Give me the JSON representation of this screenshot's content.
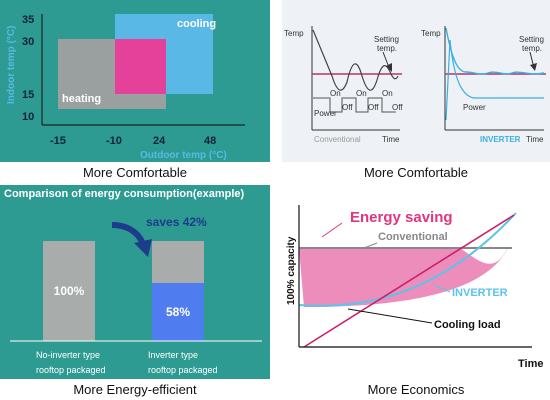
{
  "panel1": {
    "ylabel": "Indoor temp (°C)",
    "xlabel": "Outdoor temp (°C)",
    "yticks": [
      "35",
      "30",
      "15",
      "10"
    ],
    "xticks": [
      "-15",
      "-10",
      "24",
      "48"
    ],
    "cooling_label": "cooling",
    "heating_label": "heating",
    "caption": "More Comfortable",
    "colors": {
      "bg": "#2d9b92",
      "cooling": "#5ab8e6",
      "heating": "#9aa0a0",
      "overlap": "#e5409a"
    }
  },
  "panel2": {
    "caption": "More Comfortable",
    "conventional": {
      "ylabel": "Temp",
      "xlabel": "Time",
      "setting_label_1": "Setting",
      "setting_label_2": "temp.",
      "power_label": "Power",
      "on_labels": [
        "On",
        "On",
        "On"
      ],
      "off_labels": [
        "Off",
        "Off",
        "Off"
      ],
      "name": "Conventional"
    },
    "inverter": {
      "ylabel": "Temp",
      "xlabel": "Time",
      "setting_label_1": "Setting",
      "setting_label_2": "temp.",
      "power_label": "Power",
      "name": "INVERTER"
    }
  },
  "panel3": {
    "title": "Comparison of energy consumption(example)",
    "saves_label": "saves 42%",
    "caption": "More Energy-efficient",
    "colors": {
      "bg": "#2d9b92",
      "bar": "#a8acab",
      "inverter": "#4f7df0"
    },
    "chart_data": {
      "type": "bar",
      "categories": [
        "No-inverter type rooftop packaged",
        "Inverter type rooftop packaged"
      ],
      "values": [
        100,
        58
      ],
      "value_labels": [
        "100%",
        "58%"
      ],
      "category_lines": [
        [
          "No-inverter type",
          "rooftop packaged"
        ],
        [
          "Inverter type",
          "rooftop packaged"
        ]
      ],
      "ylim": [
        0,
        100
      ]
    }
  },
  "panel4": {
    "title": "Energy saving",
    "ylabel": "100% capacity",
    "xlabel": "Time",
    "conventional_label": "Conventional",
    "inverter_label": "INVERTER",
    "cooling_label": "Cooling load",
    "caption": "More Economics",
    "colors": {
      "title": "#e0357f",
      "fill": "#ec8dbc",
      "cooling_line": "#cc1f6b",
      "inverter_line": "#5bc4ea",
      "conventional_line": "#888888"
    }
  }
}
